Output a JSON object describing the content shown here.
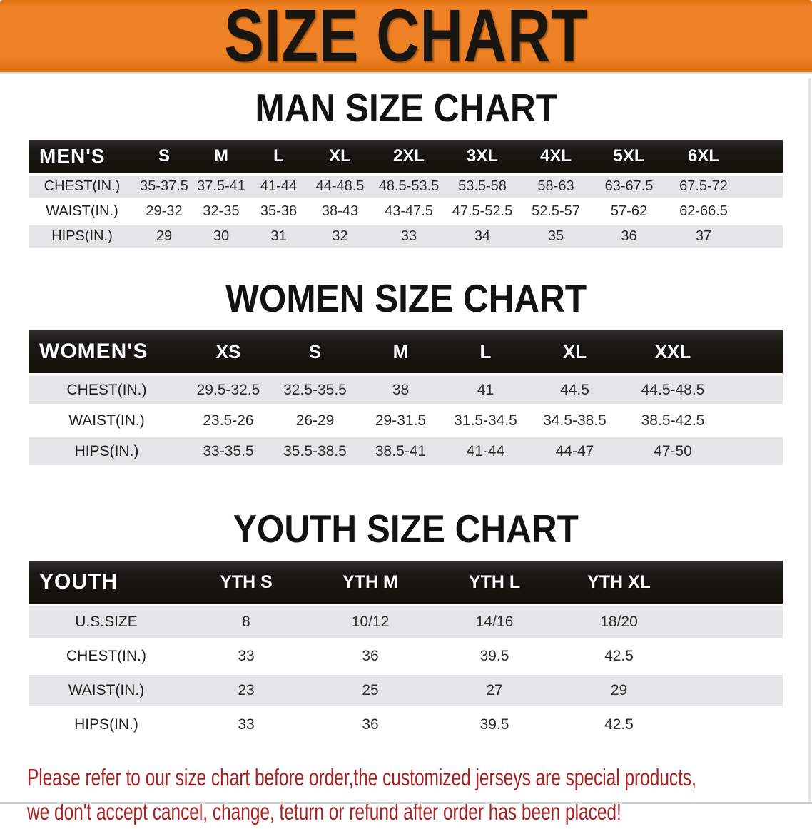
{
  "banner": {
    "title": "SIZE CHART",
    "bg_color": "#ee8024",
    "text_color": "#191511"
  },
  "sections": [
    {
      "id": "men",
      "title": "MAN SIZE CHART",
      "table": {
        "corner_label": "MEN'S",
        "sizes": [
          "S",
          "M",
          "L",
          "XL",
          "2XL",
          "3XL",
          "4XL",
          "5XL",
          "6XL"
        ],
        "rows": [
          {
            "label": "CHEST(IN.)",
            "values": [
              "35-37.5",
              "37.5-41",
              "41-44",
              "44-48.5",
              "48.5-53.5",
              "53.5-58",
              "58-63",
              "63-67.5",
              "67.5-72"
            ]
          },
          {
            "label": "WAIST(IN.)",
            "values": [
              "29-32",
              "32-35",
              "35-38",
              "38-43",
              "43-47.5",
              "47.5-52.5",
              "52.5-57",
              "57-62",
              "62-66.5"
            ]
          },
          {
            "label": "HIPS(IN.)",
            "values": [
              "29",
              "30",
              "31",
              "32",
              "33",
              "34",
              "35",
              "36",
              "37"
            ]
          }
        ]
      }
    },
    {
      "id": "women",
      "title": "WOMEN SIZE CHART",
      "table": {
        "corner_label": "WOMEN'S",
        "sizes": [
          "XS",
          "S",
          "M",
          "L",
          "XL",
          "XXL"
        ],
        "rows": [
          {
            "label": "CHEST(IN.)",
            "values": [
              "29.5-32.5",
              "32.5-35.5",
              "38",
              "41",
              "44.5",
              "44.5-48.5"
            ]
          },
          {
            "label": "WAIST(IN.)",
            "values": [
              "23.5-26",
              "26-29",
              "29-31.5",
              "31.5-34.5",
              "34.5-38.5",
              "38.5-42.5"
            ]
          },
          {
            "label": "HIPS(IN.)",
            "values": [
              "33-35.5",
              "35.5-38.5",
              "38.5-41",
              "41-44",
              "44-47",
              "47-50"
            ]
          }
        ]
      }
    },
    {
      "id": "youth",
      "title": "YOUTH SIZE CHART",
      "table": {
        "corner_label": "YOUTH",
        "sizes": [
          "YTH S",
          "YTH M",
          "YTH L",
          "YTH XL"
        ],
        "rows": [
          {
            "label": "U.S.SIZE",
            "values": [
              "8",
              "10/12",
              "14/16",
              "18/20"
            ]
          },
          {
            "label": "CHEST(IN.)",
            "values": [
              "33",
              "36",
              "39.5",
              "42.5"
            ]
          },
          {
            "label": "WAIST(IN.)",
            "values": [
              "23",
              "25",
              "27",
              "29"
            ]
          },
          {
            "label": "HIPS(IN.)",
            "values": [
              "33",
              "36",
              "39.5",
              "42.5"
            ]
          }
        ]
      }
    }
  ],
  "disclaimer": {
    "line1": "Please refer to our size chart before order,the customized jerseys are special products,",
    "line2": "we don't accept cancel, change, teturn or refund after order has been placed!",
    "color": "#a92121"
  },
  "colors": {
    "banner_orange": "#ee8024",
    "header_bar_black": "#1b1915",
    "stripe_gray": "#e3e5e7",
    "table_text": "#2b2b2b",
    "disclaimer_red": "#a92121"
  }
}
